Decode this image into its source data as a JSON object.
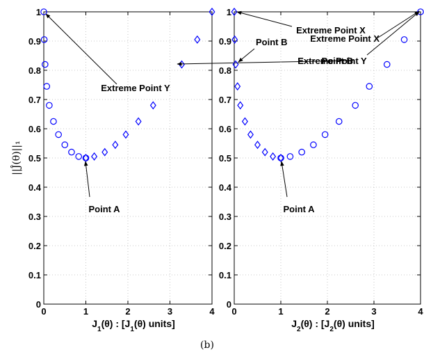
{
  "figure": {
    "ylabel": "||Ĵ(θ)||₁",
    "caption": "(b)"
  },
  "chart_data": [
    {
      "type": "scatter",
      "xlabel": "J1(θ) : [J1(θ) units]",
      "xlabel_parts": [
        "J",
        "1",
        "(θ) : [J",
        "1",
        "(θ) units]"
      ],
      "ylabel": "||Ĵ(θ)||₁",
      "xlim": [
        0,
        4
      ],
      "ylim": [
        0,
        1
      ],
      "xticks": [
        "0",
        "1",
        "2",
        "3",
        "4"
      ],
      "yticks": [
        "0",
        "0.1",
        "0.2",
        "0.3",
        "0.4",
        "0.5",
        "0.6",
        "0.7",
        "0.8",
        "0.9",
        "1"
      ],
      "grid": true,
      "series": [
        {
          "marker": "circle",
          "color": "#0000ff",
          "points": [
            [
              0.0,
              1.0
            ],
            [
              0.01,
              0.905
            ],
            [
              0.03,
              0.82
            ],
            [
              0.07,
              0.745
            ],
            [
              0.13,
              0.68
            ],
            [
              0.23,
              0.625
            ],
            [
              0.35,
              0.58
            ],
            [
              0.5,
              0.545
            ],
            [
              0.66,
              0.52
            ],
            [
              0.83,
              0.505
            ],
            [
              1.0,
              0.5
            ]
          ]
        },
        {
          "marker": "diamond",
          "color": "#0000ff",
          "points": [
            [
              1.0,
              0.5
            ],
            [
              1.2,
              0.505
            ],
            [
              1.45,
              0.52
            ],
            [
              1.7,
              0.545
            ],
            [
              1.95,
              0.58
            ],
            [
              2.25,
              0.625
            ],
            [
              2.6,
              0.68
            ],
            [
              3.28,
              0.82
            ],
            [
              3.65,
              0.905
            ],
            [
              4.0,
              1.0
            ]
          ]
        }
      ],
      "annotations": [
        {
          "text": "Extreme Point X",
          "x": 4.0,
          "y": 1.0
        },
        {
          "text": "Point B",
          "x": 3.28,
          "y": 0.82
        },
        {
          "text": "Extreme Point Y",
          "x": 0.0,
          "y": 1.0
        },
        {
          "text": "Point A",
          "x": 1.0,
          "y": 0.5
        }
      ]
    },
    {
      "type": "scatter",
      "xlabel": "J2(θ) : [J2(θ) units]",
      "xlabel_parts": [
        "J",
        "2",
        "(θ) : [J",
        "2",
        "(θ) units]"
      ],
      "xlim": [
        0,
        4
      ],
      "ylim": [
        0,
        1
      ],
      "xticks": [
        "0",
        "1",
        "2",
        "3",
        "4"
      ],
      "yticks": [
        "0",
        "0.1",
        "0.2",
        "0.3",
        "0.4",
        "0.5",
        "0.6",
        "0.7",
        "0.8",
        "0.9",
        "1"
      ],
      "grid": true,
      "series": [
        {
          "marker": "diamond",
          "color": "#0000ff",
          "points": [
            [
              0.0,
              1.0
            ],
            [
              0.01,
              0.905
            ],
            [
              0.03,
              0.82
            ],
            [
              0.07,
              0.745
            ],
            [
              0.13,
              0.68
            ],
            [
              0.23,
              0.625
            ],
            [
              0.35,
              0.58
            ],
            [
              0.5,
              0.545
            ],
            [
              0.66,
              0.52
            ],
            [
              0.83,
              0.505
            ],
            [
              1.0,
              0.5
            ]
          ]
        },
        {
          "marker": "circle",
          "color": "#0000ff",
          "points": [
            [
              1.0,
              0.5
            ],
            [
              1.2,
              0.505
            ],
            [
              1.45,
              0.52
            ],
            [
              1.7,
              0.545
            ],
            [
              1.95,
              0.58
            ],
            [
              2.25,
              0.625
            ],
            [
              2.6,
              0.68
            ],
            [
              2.9,
              0.745
            ],
            [
              3.28,
              0.82
            ],
            [
              3.65,
              0.905
            ],
            [
              4.0,
              1.0
            ]
          ]
        }
      ],
      "annotations": [
        {
          "text": "Extreme Point X",
          "x": 0.0,
          "y": 1.0
        },
        {
          "text": "Point B",
          "x": 0.03,
          "y": 0.82
        },
        {
          "text": "Extreme Point Y",
          "x": 4.0,
          "y": 1.0
        },
        {
          "text": "Point A",
          "x": 1.0,
          "y": 0.5
        }
      ]
    }
  ]
}
